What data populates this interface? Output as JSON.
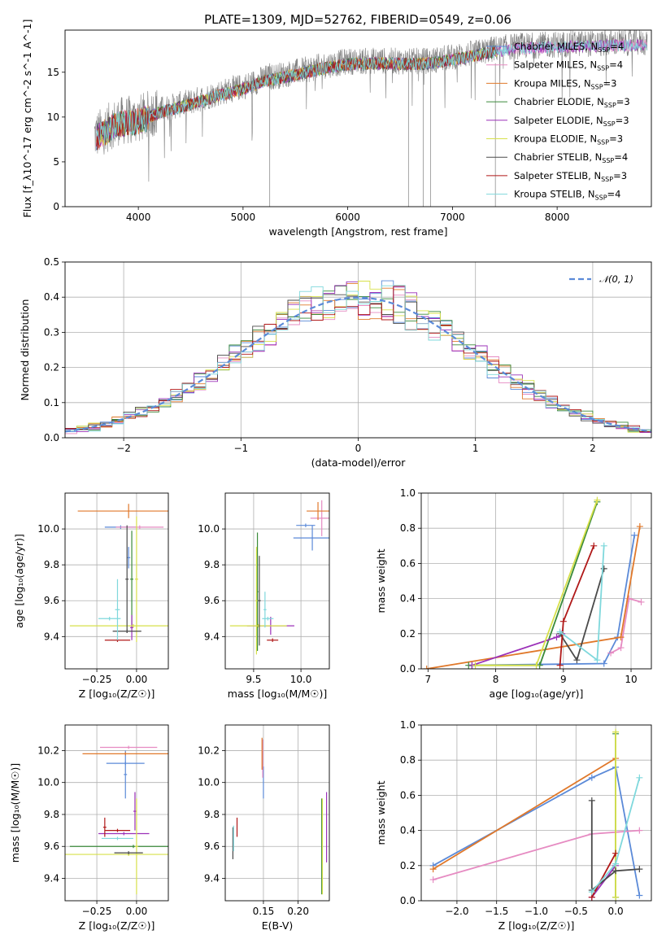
{
  "figure": {
    "title": "PLATE=1309, MJD=52762, FIBERID=0549, z=0.06"
  },
  "models": [
    {
      "name": "Chabrier MILES, N_SSP=4",
      "color": "#5b8ad8"
    },
    {
      "name": "Salpeter MILES, N_SSP=4",
      "color": "#e68bc2"
    },
    {
      "name": "Kroupa MILES, N_SSP=3",
      "color": "#e0782a"
    },
    {
      "name": "Chabrier ELODIE, N_SSP=3",
      "color": "#3a8a3a"
    },
    {
      "name": "Salpeter ELODIE, N_SSP=3",
      "color": "#9b30b8"
    },
    {
      "name": "Kroupa ELODIE, N_SSP=3",
      "color": "#d7e04a"
    },
    {
      "name": "Chabrier STELIB, N_SSP=4",
      "color": "#4a4a4a"
    },
    {
      "name": "Salpeter STELIB, N_SSP=3",
      "color": "#b01818"
    },
    {
      "name": "Kroupa STELIB, N_SSP=4",
      "color": "#7fd8dc"
    }
  ],
  "chart_data": [
    {
      "id": "spectrum",
      "type": "line",
      "xlabel": "wavelength [Angstrom, rest frame]",
      "ylabel": "Flux [f_λ10^-17 erg cm^-2 s^-1 A^-1]",
      "xlim": [
        3300,
        8900
      ],
      "ylim": [
        0,
        19.7
      ],
      "xticks": [
        4000,
        5000,
        6000,
        7000,
        8000
      ],
      "yticks": [
        0,
        5,
        10,
        15
      ],
      "grid": false,
      "legend": "right",
      "data_color": "#7f7f7f",
      "data_x": [
        3600,
        3800,
        4000,
        4200,
        4500,
        4800,
        5000,
        5200,
        5500,
        5800,
        6000,
        6300,
        6600,
        6800,
        7000,
        7200,
        7400,
        7600,
        7800,
        8000,
        8200,
        8400,
        8600,
        8800
      ],
      "data_y": [
        8.0,
        9.5,
        9.8,
        10.8,
        11.7,
        12.8,
        13.4,
        14.3,
        15.0,
        15.8,
        16.2,
        16.3,
        16.2,
        16.3,
        16.7,
        17.1,
        17.6,
        17.9,
        18.0,
        18.1,
        18.2,
        18.2,
        18.3,
        18.3
      ]
    },
    {
      "id": "residuals",
      "type": "step-histogram",
      "xlabel": "(data-model)/error",
      "ylabel": "Normed distribution",
      "xlim": [
        -2.5,
        2.5
      ],
      "ylim": [
        0,
        0.5
      ],
      "xticks": [
        -2,
        -1,
        0,
        1,
        2
      ],
      "xtick_labels": [
        "−2",
        "−1",
        "0",
        "1",
        "2"
      ],
      "yticks": [
        0,
        0.1,
        0.2,
        0.3,
        0.4,
        0.5
      ],
      "ytick_labels": [
        "0.0",
        "0.1",
        "0.2",
        "0.3",
        "0.4",
        "0.5"
      ],
      "grid": true,
      "legend": "top-right",
      "reference_label": "𝒩(0, 1)",
      "reference_color": "#5b8ad8"
    },
    {
      "id": "age-vs-Z",
      "type": "errorbar",
      "xlabel": "Z [log₁₀(Z/Z☉)]",
      "ylabel": "age  [log₁₀(age/yr)]",
      "xlim": [
        -0.45,
        0.2
      ],
      "ylim": [
        9.22,
        10.2
      ],
      "xticks": [
        -0.25,
        0.0
      ],
      "xtick_labels": [
        "−0.25",
        "0.00"
      ],
      "yticks": [
        9.4,
        9.6,
        9.8,
        10.0
      ],
      "ytick_labels": [
        "9.4",
        "9.6",
        "9.8",
        "10.0"
      ],
      "points": [
        {
          "x": -0.05,
          "y": 9.84,
          "xerr": 0.01,
          "yerr": 0.06,
          "c": 0
        },
        {
          "x": -0.1,
          "y": 10.01,
          "xerr": 0.1,
          "yerr": 0.01,
          "c": 0
        },
        {
          "x": 0.02,
          "y": 10.01,
          "xerr": 0.15,
          "yerr": 0.01,
          "c": 1
        },
        {
          "x": -0.05,
          "y": 10.1,
          "xerr": 0.32,
          "yerr": 0.04,
          "c": 2
        },
        {
          "x": -0.03,
          "y": 9.72,
          "xerr": 0.01,
          "yerr": 0.27,
          "c": 3
        },
        {
          "x": -0.03,
          "y": 9.45,
          "xerr": 0.01,
          "yerr": 0.07,
          "c": 4
        },
        {
          "x": -0.02,
          "y": 9.46,
          "xerr": 0.4,
          "yerr": 0.01,
          "c": 5
        },
        {
          "x": 0.0,
          "y": 9.72,
          "xerr": 0.01,
          "yerr": 0.35,
          "c": 5
        },
        {
          "x": -0.06,
          "y": 9.43,
          "xerr": 0.09,
          "yerr": 0.01,
          "c": 6
        },
        {
          "x": -0.06,
          "y": 9.72,
          "xerr": 0.01,
          "yerr": 0.3,
          "c": 6
        },
        {
          "x": -0.12,
          "y": 9.38,
          "xerr": 0.08,
          "yerr": 0.01,
          "c": 7
        },
        {
          "x": -0.12,
          "y": 9.55,
          "xerr": 0.015,
          "yerr": 0.17,
          "c": 8
        },
        {
          "x": -0.17,
          "y": 9.5,
          "xerr": 0.07,
          "yerr": 0.01,
          "c": 8
        }
      ]
    },
    {
      "id": "age-vs-mass",
      "type": "errorbar",
      "xlabel": "mass [log₁₀(M/M☉)]",
      "ylabel": "",
      "xlim": [
        9.2,
        10.3
      ],
      "ylim": [
        9.22,
        10.2
      ],
      "xticks": [
        9.5,
        10.0
      ],
      "xtick_labels": [
        "9.5",
        "10.0"
      ],
      "yticks": [
        9.4,
        9.6,
        9.8,
        10.0
      ],
      "ytick_labels": [
        "9.4",
        "9.6",
        "9.8",
        "10.0"
      ],
      "points": [
        {
          "x": 10.12,
          "y": 9.95,
          "xerr": 0.2,
          "yerr": 0.07,
          "c": 0
        },
        {
          "x": 10.05,
          "y": 10.02,
          "xerr": 0.1,
          "yerr": 0.01,
          "c": 0
        },
        {
          "x": 10.22,
          "y": 10.06,
          "xerr": 0.12,
          "yerr": 0.1,
          "c": 1
        },
        {
          "x": 10.18,
          "y": 10.1,
          "xerr": 0.12,
          "yerr": 0.05,
          "c": 2
        },
        {
          "x": 9.54,
          "y": 9.65,
          "xerr": 0.01,
          "yerr": 0.33,
          "c": 3
        },
        {
          "x": 9.68,
          "y": 9.46,
          "xerr": 0.25,
          "yerr": 0.05,
          "c": 4
        },
        {
          "x": 9.55,
          "y": 9.46,
          "xerr": 0.3,
          "yerr": 0.01,
          "c": 5
        },
        {
          "x": 9.53,
          "y": 9.6,
          "xerr": 0.01,
          "yerr": 0.3,
          "c": 5
        },
        {
          "x": 9.56,
          "y": 9.6,
          "xerr": 0.015,
          "yerr": 0.25,
          "c": 6
        },
        {
          "x": 9.7,
          "y": 9.38,
          "xerr": 0.06,
          "yerr": 0.01,
          "c": 7
        },
        {
          "x": 9.65,
          "y": 9.5,
          "xerr": 0.06,
          "yerr": 0.01,
          "c": 8
        },
        {
          "x": 9.62,
          "y": 9.55,
          "xerr": 0.015,
          "yerr": 0.1,
          "c": 8
        }
      ]
    },
    {
      "id": "massweight-vs-age",
      "type": "line",
      "xlabel": "age  [log₁₀(age/yr)]",
      "ylabel": "mass weight",
      "xlim": [
        6.9,
        10.3
      ],
      "ylim": [
        0,
        1.0
      ],
      "xticks": [
        7,
        8,
        9,
        10
      ],
      "xtick_labels": [
        "7",
        "8",
        "9",
        "10"
      ],
      "yticks": [
        0,
        0.2,
        0.4,
        0.6,
        0.8,
        1.0
      ],
      "ytick_labels": [
        "0.0",
        "0.2",
        "0.4",
        "0.6",
        "0.8",
        "1.0"
      ],
      "series": [
        {
          "c": 0,
          "x": [
            7.65,
            9.6,
            9.8,
            10.05
          ],
          "y": [
            0.02,
            0.03,
            0.18,
            0.76
          ]
        },
        {
          "c": 1,
          "x": [
            9.7,
            9.85,
            9.97,
            10.15
          ],
          "y": [
            0.09,
            0.12,
            0.4,
            0.38
          ]
        },
        {
          "c": 2,
          "x": [
            6.98,
            9.85,
            10.13
          ],
          "y": [
            0.0,
            0.18,
            0.81
          ]
        },
        {
          "c": 3,
          "x": [
            7.6,
            8.65,
            9.5
          ],
          "y": [
            0.02,
            0.02,
            0.95
          ]
        },
        {
          "c": 4,
          "x": [
            7.65,
            8.9,
            8.98
          ],
          "y": [
            0.02,
            0.18,
            0.2
          ]
        },
        {
          "c": 5,
          "x": [
            7.7,
            8.6,
            9.5
          ],
          "y": [
            0.02,
            0.02,
            0.96
          ]
        },
        {
          "c": 6,
          "x": [
            8.95,
            9.2,
            9.6
          ],
          "y": [
            0.2,
            0.05,
            0.57
          ]
        },
        {
          "c": 7,
          "x": [
            8.95,
            9.0,
            9.45
          ],
          "y": [
            0.02,
            0.27,
            0.7
          ]
        },
        {
          "c": 8,
          "x": [
            8.95,
            9.5,
            9.6
          ],
          "y": [
            0.21,
            0.05,
            0.7
          ]
        }
      ]
    },
    {
      "id": "mass-vs-Z",
      "type": "errorbar",
      "xlabel": "Z [log₁₀(Z/Z☉)]",
      "ylabel": "mass [log₁₀(M/M☉)]",
      "xlim": [
        -0.45,
        0.2
      ],
      "ylim": [
        9.26,
        10.36
      ],
      "xticks": [
        -0.25,
        0.0
      ],
      "xtick_labels": [
        "−0.25",
        "0.00"
      ],
      "yticks": [
        9.4,
        9.6,
        9.8,
        10.0,
        10.2
      ],
      "ytick_labels": [
        "9.4",
        "9.6",
        "9.8",
        "10.0",
        "10.2"
      ],
      "points": [
        {
          "x": -0.07,
          "y": 10.12,
          "xerr": 0.12,
          "yerr": 0.01,
          "c": 0
        },
        {
          "x": -0.07,
          "y": 10.05,
          "xerr": 0.01,
          "yerr": 0.15,
          "c": 0
        },
        {
          "x": -0.05,
          "y": 10.22,
          "xerr": 0.18,
          "yerr": 0.01,
          "c": 1
        },
        {
          "x": -0.07,
          "y": 10.18,
          "xerr": 0.27,
          "yerr": 0.01,
          "c": 2
        },
        {
          "x": -0.02,
          "y": 9.6,
          "xerr": 0.4,
          "yerr": 0.01,
          "c": 3
        },
        {
          "x": -0.08,
          "y": 9.68,
          "xerr": 0.16,
          "yerr": 0.01,
          "c": 4
        },
        {
          "x": -0.01,
          "y": 9.82,
          "xerr": 0.01,
          "yerr": 0.12,
          "c": 4
        },
        {
          "x": -0.05,
          "y": 9.55,
          "xerr": 0.4,
          "yerr": 0.01,
          "c": 5
        },
        {
          "x": 0.0,
          "y": 9.6,
          "xerr": 0.01,
          "yerr": 0.3,
          "c": 5
        },
        {
          "x": -0.05,
          "y": 9.56,
          "xerr": 0.09,
          "yerr": 0.01,
          "c": 6
        },
        {
          "x": -0.12,
          "y": 9.7,
          "xerr": 0.08,
          "yerr": 0.01,
          "c": 7
        },
        {
          "x": -0.2,
          "y": 9.72,
          "xerr": 0.01,
          "yerr": 0.06,
          "c": 7
        },
        {
          "x": -0.12,
          "y": 9.65,
          "xerr": 0.1,
          "yerr": 0.01,
          "c": 8
        }
      ]
    },
    {
      "id": "mass-vs-EBV",
      "type": "errorbar",
      "xlabel": "E(B-V)",
      "ylabel": "",
      "xlim": [
        0.095,
        0.245
      ],
      "ylim": [
        9.26,
        10.36
      ],
      "xticks": [
        0.15,
        0.2
      ],
      "xtick_labels": [
        "0.15",
        "0.20"
      ],
      "yticks": [
        9.4,
        9.6,
        9.8,
        10.0,
        10.2
      ],
      "ytick_labels": [
        "9.4",
        "9.6",
        "9.8",
        "10.0",
        "10.2"
      ],
      "points": [
        {
          "x": 0.15,
          "y": 10.0,
          "xerr": 0.0,
          "yerr": 0.1,
          "c": 0
        },
        {
          "x": 0.149,
          "y": 10.15,
          "xerr": 0.0,
          "yerr": 0.12,
          "c": 1
        },
        {
          "x": 0.148,
          "y": 10.18,
          "xerr": 0.0,
          "yerr": 0.1,
          "c": 2
        },
        {
          "x": 0.234,
          "y": 9.6,
          "xerr": 0.0,
          "yerr": 0.3,
          "c": 3
        },
        {
          "x": 0.241,
          "y": 9.72,
          "xerr": 0.0,
          "yerr": 0.22,
          "c": 4
        },
        {
          "x": 0.235,
          "y": 9.6,
          "xerr": 0.0,
          "yerr": 0.3,
          "c": 5
        },
        {
          "x": 0.106,
          "y": 9.62,
          "xerr": 0.0,
          "yerr": 0.1,
          "c": 6
        },
        {
          "x": 0.112,
          "y": 9.72,
          "xerr": 0.0,
          "yerr": 0.06,
          "c": 7
        },
        {
          "x": 0.107,
          "y": 9.65,
          "xerr": 0.0,
          "yerr": 0.08,
          "c": 8
        }
      ]
    },
    {
      "id": "massweight-vs-Z",
      "type": "line",
      "xlabel": "Z [log₁₀(Z/Z☉)]",
      "ylabel": "mass weight",
      "xlim": [
        -2.45,
        0.45
      ],
      "ylim": [
        0,
        1.0
      ],
      "xticks": [
        -2.0,
        -1.5,
        -1.0,
        -0.5,
        0.0
      ],
      "xtick_labels": [
        "−2.0",
        "−1.5",
        "−1.0",
        "−0.5",
        "0.0"
      ],
      "yticks": [
        0,
        0.2,
        0.4,
        0.6,
        0.8,
        1.0
      ],
      "ytick_labels": [
        "0.0",
        "0.2",
        "0.4",
        "0.6",
        "0.8",
        "1.0"
      ],
      "series": [
        {
          "c": 0,
          "x": [
            -2.3,
            -0.3,
            0.0,
            0.3
          ],
          "y": [
            0.2,
            0.7,
            0.76,
            0.03
          ]
        },
        {
          "c": 1,
          "x": [
            -2.3,
            -0.3,
            0.3
          ],
          "y": [
            0.12,
            0.38,
            0.4
          ]
        },
        {
          "c": 2,
          "x": [
            -2.3,
            0.0
          ],
          "y": [
            0.18,
            0.81
          ]
        },
        {
          "c": 3,
          "x": [
            0.0,
            0.0
          ],
          "y": [
            0.02,
            0.95
          ]
        },
        {
          "c": 4,
          "x": [
            -0.3,
            0.0
          ],
          "y": [
            0.02,
            0.2
          ]
        },
        {
          "c": 5,
          "x": [
            0.0,
            0.0
          ],
          "y": [
            0.02,
            0.96
          ]
        },
        {
          "c": 6,
          "x": [
            -0.3,
            -0.3,
            0.0,
            0.3
          ],
          "y": [
            0.57,
            0.06,
            0.17,
            0.18
          ]
        },
        {
          "c": 7,
          "x": [
            -0.3,
            0.0
          ],
          "y": [
            0.02,
            0.27
          ]
        },
        {
          "c": 8,
          "x": [
            -0.3,
            0.0,
            0.3
          ],
          "y": [
            0.05,
            0.21,
            0.7
          ]
        }
      ]
    }
  ]
}
